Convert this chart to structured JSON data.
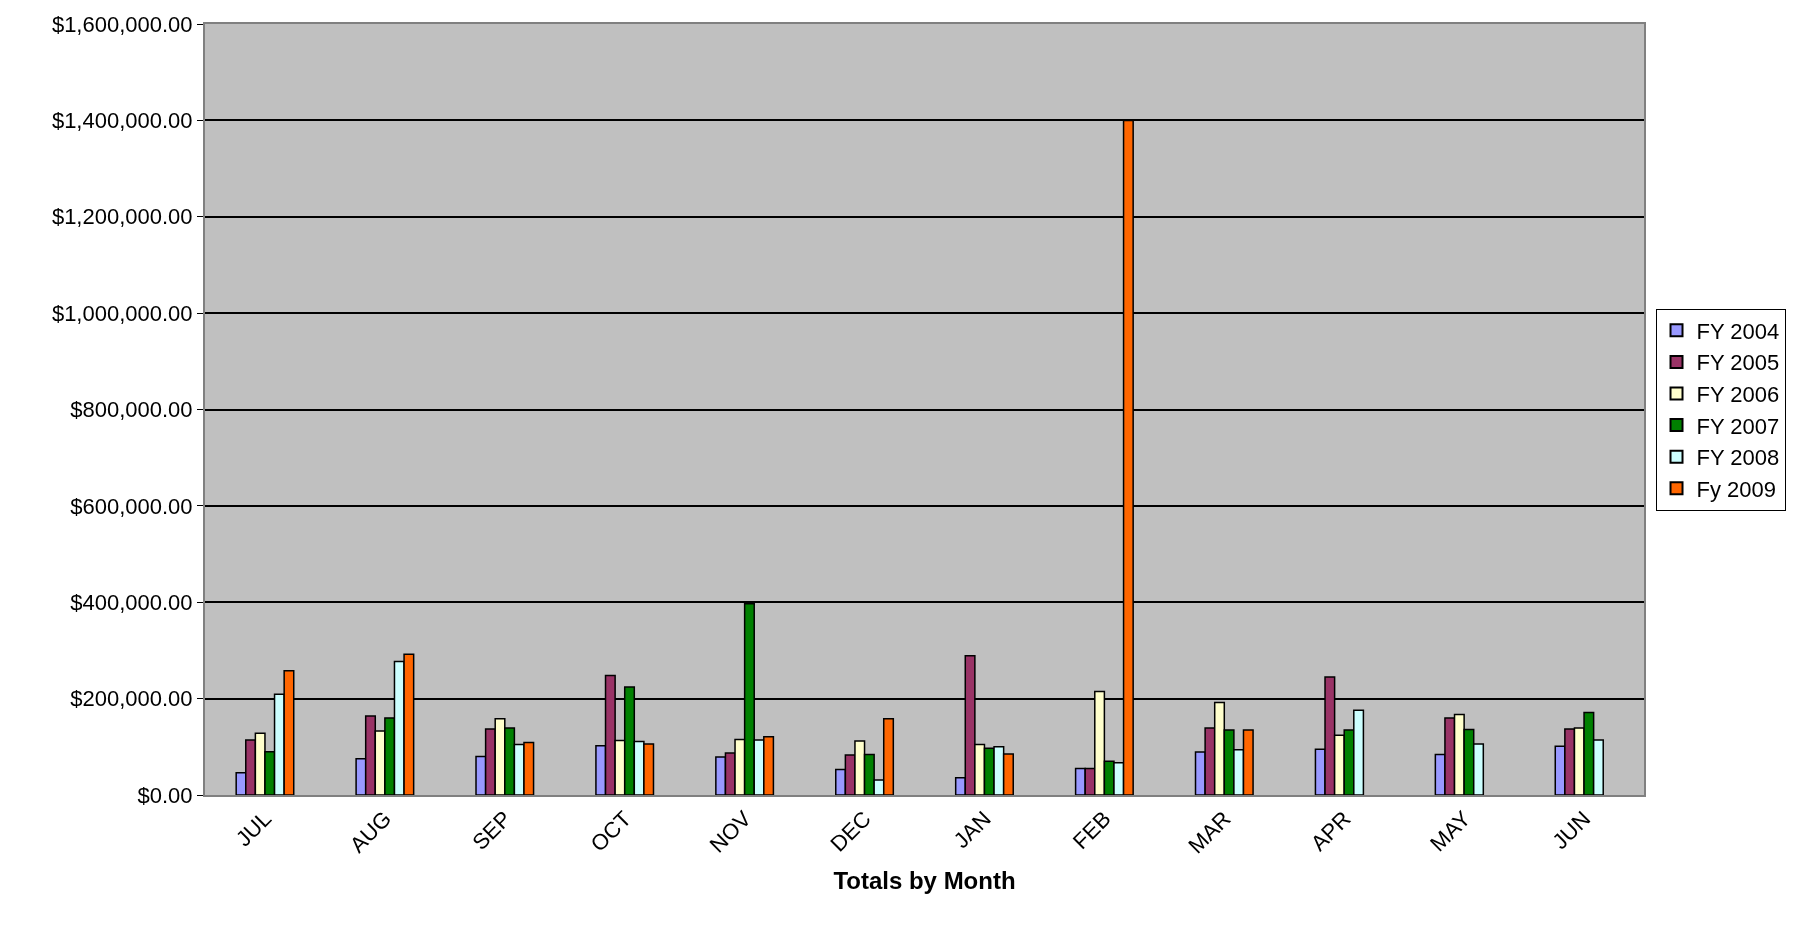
{
  "chart_data": {
    "type": "bar",
    "xlabel": "Totals by Month",
    "categories": [
      "JUL",
      "AUG",
      "SEP",
      "OCT",
      "NOV",
      "DEC",
      "JAN",
      "FEB",
      "MAR",
      "APR",
      "MAY",
      "JUN"
    ],
    "series": [
      {
        "name": "FY 2004",
        "color": "#9999ff",
        "values": [
          46000,
          75000,
          80000,
          102000,
          79000,
          53000,
          36000,
          55000,
          89000,
          95000,
          84000,
          101000
        ]
      },
      {
        "name": "FY 2005",
        "color": "#993366",
        "values": [
          114000,
          164000,
          137000,
          248000,
          87000,
          83000,
          289000,
          55000,
          139000,
          245000,
          160000,
          137000
        ]
      },
      {
        "name": "FY 2006",
        "color": "#ffffcc",
        "values": [
          128000,
          133000,
          158000,
          113000,
          115000,
          112000,
          105000,
          215000,
          192000,
          124000,
          167000,
          139000
        ]
      },
      {
        "name": "FY 2007",
        "color": "#008000",
        "values": [
          90000,
          160000,
          139000,
          224000,
          397000,
          84000,
          97000,
          70000,
          135000,
          135000,
          136000,
          171000
        ]
      },
      {
        "name": "FY 2008",
        "color": "#ccffff",
        "values": [
          209000,
          277000,
          105000,
          111000,
          114000,
          31000,
          100000,
          67000,
          94000,
          176000,
          106000,
          114000
        ]
      },
      {
        "name": "Fy 2009",
        "color": "#ff6600",
        "values": [
          258000,
          292000,
          109000,
          106000,
          121000,
          158000,
          85000,
          1400000,
          135000,
          null,
          null,
          null
        ]
      }
    ],
    "ylim": [
      0,
      1600000
    ],
    "yticks": [
      {
        "value": 0,
        "label": "$0.00"
      },
      {
        "value": 200000,
        "label": "$200,000.00"
      },
      {
        "value": 400000,
        "label": "$400,000.00"
      },
      {
        "value": 600000,
        "label": "$600,000.00"
      },
      {
        "value": 800000,
        "label": "$800,000.00"
      },
      {
        "value": 1000000,
        "label": "$1,000,000.00"
      },
      {
        "value": 1200000,
        "label": "$1,200,000.00"
      },
      {
        "value": 1400000,
        "label": "$1,400,000.00"
      },
      {
        "value": 1600000,
        "label": "$1,600,000.00"
      }
    ],
    "grid": "y",
    "legend": "right"
  }
}
